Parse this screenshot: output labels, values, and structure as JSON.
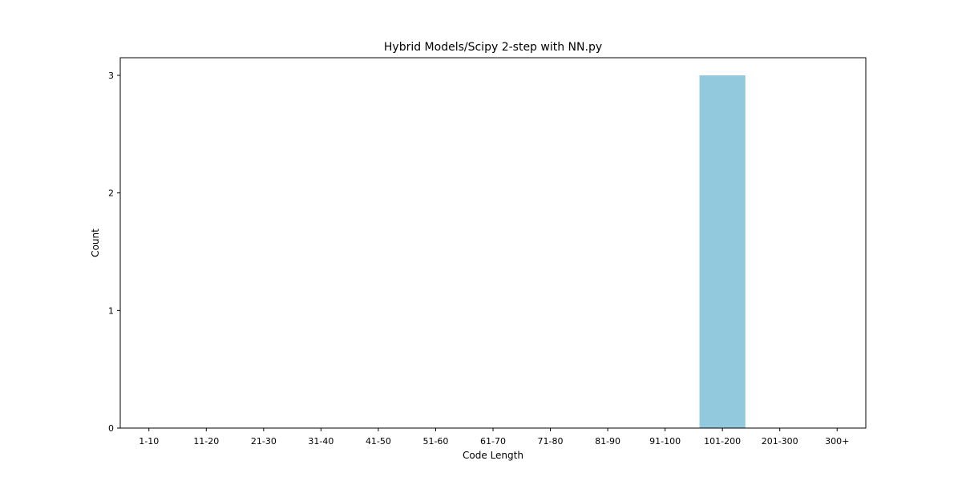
{
  "chart_data": {
    "type": "bar",
    "title": "Hybrid Models/Scipy 2-step with NN.py",
    "xlabel": "Code Length",
    "ylabel": "Count",
    "categories": [
      "1-10",
      "11-20",
      "21-30",
      "31-40",
      "41-50",
      "51-60",
      "61-70",
      "71-80",
      "81-90",
      "91-100",
      "101-200",
      "201-300",
      "300+"
    ],
    "values": [
      0,
      0,
      0,
      0,
      0,
      0,
      0,
      0,
      0,
      0,
      3,
      0,
      0
    ],
    "yticks": [
      0,
      1,
      2,
      3
    ],
    "ylim": [
      0,
      3.15
    ],
    "bar_color": "#92c9dc",
    "grid": false,
    "legend": "none"
  }
}
